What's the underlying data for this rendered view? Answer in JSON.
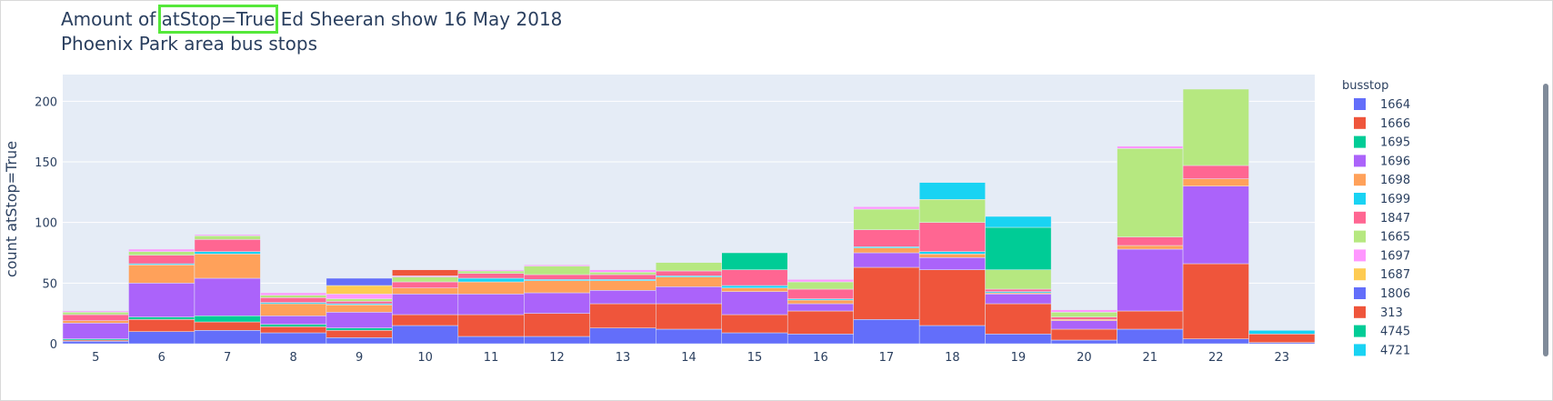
{
  "title": {
    "line1_prefix": "Amount of ",
    "line1_highlight": "atStop=True",
    "line1_suffix": " Ed Sheeran show 16 May 2018",
    "line2": "Phoenix Park area bus stops"
  },
  "chart_data": {
    "type": "bar",
    "barmode": "stack",
    "xlabel": "",
    "ylabel": "count atStop=True",
    "ylim": [
      0,
      222
    ],
    "yticks": [
      0,
      50,
      100,
      150,
      200
    ],
    "grid": true,
    "legend_position": "right",
    "legend_title": "busstop",
    "categories": [
      "5",
      "6",
      "7",
      "8",
      "9",
      "10",
      "11",
      "12",
      "13",
      "14",
      "15",
      "16",
      "17",
      "18",
      "19",
      "20",
      "21",
      "22",
      "23"
    ],
    "series": [
      {
        "name": "1664",
        "color": "#636efa",
        "values": [
          2,
          10,
          11,
          9,
          5,
          15,
          6,
          6,
          13,
          12,
          9,
          8,
          20,
          15,
          8,
          3,
          12,
          4,
          1
        ]
      },
      {
        "name": "1666",
        "color": "#ef553b",
        "values": [
          1,
          10,
          7,
          5,
          6,
          9,
          18,
          19,
          20,
          21,
          15,
          19,
          43,
          46,
          25,
          9,
          15,
          62,
          7
        ]
      },
      {
        "name": "1695",
        "color": "#00cc96",
        "values": [
          1,
          2,
          5,
          2,
          2,
          0,
          0,
          0,
          0,
          0,
          0,
          0,
          0,
          0,
          0,
          0,
          0,
          0,
          0
        ]
      },
      {
        "name": "1696",
        "color": "#ab63fa",
        "values": [
          13,
          28,
          31,
          7,
          13,
          17,
          17,
          17,
          11,
          14,
          19,
          6,
          12,
          10,
          8,
          7,
          51,
          64,
          0
        ]
      },
      {
        "name": "1698",
        "color": "#ffa15a",
        "values": [
          2,
          15,
          20,
          10,
          6,
          5,
          10,
          10,
          8,
          8,
          3,
          3,
          4,
          3,
          1,
          1,
          3,
          6,
          0
        ]
      },
      {
        "name": "1699",
        "color": "#19d3f3",
        "values": [
          0,
          1,
          2,
          1,
          1,
          0,
          3,
          1,
          1,
          1,
          2,
          1,
          1,
          2,
          1,
          0,
          0,
          0,
          3
        ]
      },
      {
        "name": "1847",
        "color": "#ff6692",
        "values": [
          5,
          7,
          10,
          4,
          2,
          5,
          4,
          4,
          4,
          4,
          13,
          8,
          14,
          24,
          2,
          2,
          7,
          11,
          0
        ]
      },
      {
        "name": "1665",
        "color": "#b6e880",
        "values": [
          2,
          3,
          3,
          2,
          2,
          4,
          2,
          7,
          2,
          7,
          0,
          6,
          17,
          19,
          16,
          4,
          73,
          63,
          0
        ]
      },
      {
        "name": "1697",
        "color": "#ff97ff",
        "values": [
          1,
          2,
          1,
          2,
          4,
          1,
          1,
          1,
          2,
          0,
          0,
          2,
          2,
          0,
          0,
          2,
          2,
          0,
          0
        ]
      },
      {
        "name": "1687",
        "color": "#fecb52",
        "values": [
          0,
          0,
          0,
          0,
          7,
          0,
          0,
          0,
          0,
          0,
          0,
          0,
          0,
          0,
          0,
          0,
          0,
          0,
          0
        ]
      },
      {
        "name": "1806",
        "color": "#636efa",
        "values": [
          0,
          0,
          0,
          0,
          6,
          0,
          0,
          0,
          0,
          0,
          0,
          0,
          0,
          0,
          0,
          0,
          0,
          0,
          0
        ]
      },
      {
        "name": "313",
        "color": "#ef553b",
        "values": [
          0,
          0,
          0,
          0,
          0,
          5,
          0,
          0,
          0,
          0,
          0,
          0,
          0,
          0,
          0,
          0,
          0,
          0,
          0
        ]
      },
      {
        "name": "4745",
        "color": "#00cc96",
        "values": [
          0,
          0,
          0,
          0,
          0,
          0,
          0,
          0,
          0,
          0,
          14,
          0,
          0,
          0,
          35,
          0,
          0,
          0,
          0
        ]
      },
      {
        "name": "4721",
        "color": "#19d3f3",
        "values": [
          0,
          0,
          0,
          0,
          0,
          0,
          0,
          0,
          0,
          0,
          0,
          0,
          0,
          14,
          9,
          0,
          0,
          0,
          0
        ]
      }
    ]
  }
}
